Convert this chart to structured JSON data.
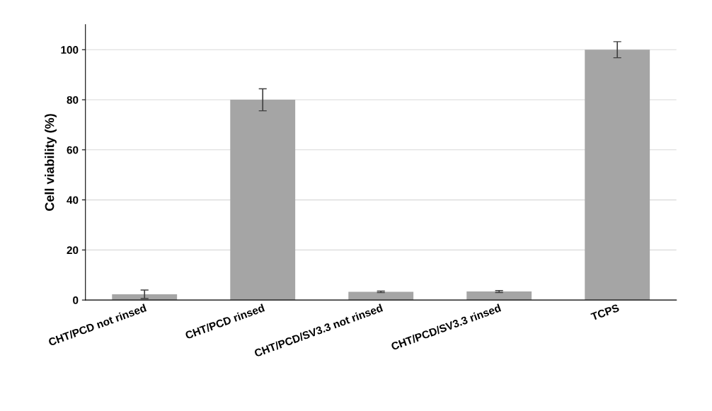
{
  "chart_data": {
    "type": "bar",
    "ylabel": "Cell viability (%)",
    "categories": [
      "CHT/PCD not rinsed",
      "CHT/PCD rinsed",
      "CHT/PCD/SV3.3 not rinsed",
      "CHT/PCD/SV3.3 rinsed",
      "TCPS"
    ],
    "values": [
      2.3,
      80,
      3.3,
      3.4,
      100
    ],
    "errors": [
      1.7,
      4.4,
      0.3,
      0.4,
      3.2
    ],
    "color": "#a5a5a5",
    "ylim": [
      0,
      110
    ],
    "yticks": [
      0,
      20,
      40,
      60,
      80,
      100
    ],
    "grid": "y",
    "legend": false
  }
}
